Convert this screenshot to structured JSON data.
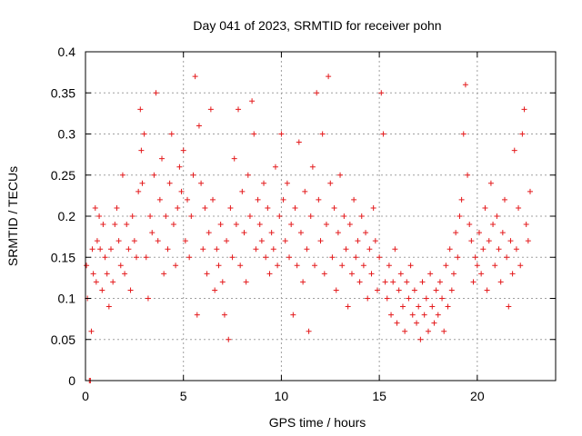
{
  "chart_data": {
    "type": "scatter",
    "title": "Day 041 of 2023, SRMTID for receiver pohn",
    "xlabel": "GPS time / hours",
    "ylabel": "SRMTID / TECUs",
    "xlim": [
      0,
      24
    ],
    "ylim": [
      0,
      0.4
    ],
    "xticks": [
      0,
      5,
      10,
      15,
      20
    ],
    "yticks": [
      0,
      0.05,
      0.1,
      0.15,
      0.2,
      0.25,
      0.3,
      0.35,
      0.4
    ],
    "xtick_labels": [
      "0",
      "5",
      "10",
      "15",
      "20"
    ],
    "ytick_labels": [
      "0",
      "0.05",
      "0.1",
      "0.15",
      "0.2",
      "0.25",
      "0.3",
      "0.35",
      "0.4"
    ],
    "grid": true,
    "marker": "+",
    "color": "#e41a1c",
    "series": [
      {
        "name": "SRMTID",
        "points": [
          [
            0.05,
            0.14
          ],
          [
            0.1,
            0.1
          ],
          [
            0.2,
            0.0
          ],
          [
            0.25,
            0.0
          ],
          [
            0.3,
            0.06
          ],
          [
            0.35,
            0.16
          ],
          [
            0.4,
            0.13
          ],
          [
            0.5,
            0.21
          ],
          [
            0.55,
            0.12
          ],
          [
            0.6,
            0.17
          ],
          [
            0.7,
            0.2
          ],
          [
            0.75,
            0.16
          ],
          [
            0.85,
            0.11
          ],
          [
            0.9,
            0.19
          ],
          [
            1.0,
            0.15
          ],
          [
            1.1,
            0.13
          ],
          [
            1.2,
            0.09
          ],
          [
            1.3,
            0.16
          ],
          [
            1.4,
            0.12
          ],
          [
            1.5,
            0.19
          ],
          [
            1.6,
            0.21
          ],
          [
            1.7,
            0.17
          ],
          [
            1.8,
            0.14
          ],
          [
            1.9,
            0.25
          ],
          [
            2.0,
            0.13
          ],
          [
            2.1,
            0.19
          ],
          [
            2.2,
            0.16
          ],
          [
            2.3,
            0.11
          ],
          [
            2.4,
            0.2
          ],
          [
            2.5,
            0.17
          ],
          [
            2.6,
            0.15
          ],
          [
            2.7,
            0.23
          ],
          [
            2.8,
            0.33
          ],
          [
            2.85,
            0.28
          ],
          [
            2.9,
            0.24
          ],
          [
            3.0,
            0.3
          ],
          [
            3.1,
            0.15
          ],
          [
            3.2,
            0.1
          ],
          [
            3.3,
            0.2
          ],
          [
            3.4,
            0.18
          ],
          [
            3.5,
            0.25
          ],
          [
            3.6,
            0.35
          ],
          [
            3.7,
            0.17
          ],
          [
            3.8,
            0.22
          ],
          [
            3.9,
            0.27
          ],
          [
            4.0,
            0.13
          ],
          [
            4.1,
            0.2
          ],
          [
            4.2,
            0.16
          ],
          [
            4.3,
            0.24
          ],
          [
            4.4,
            0.3
          ],
          [
            4.5,
            0.19
          ],
          [
            4.6,
            0.14
          ],
          [
            4.7,
            0.21
          ],
          [
            4.8,
            0.26
          ],
          [
            4.9,
            0.23
          ],
          [
            5.0,
            0.28
          ],
          [
            5.1,
            0.17
          ],
          [
            5.2,
            0.22
          ],
          [
            5.3,
            0.15
          ],
          [
            5.4,
            0.2
          ],
          [
            5.5,
            0.25
          ],
          [
            5.6,
            0.37
          ],
          [
            5.7,
            0.08
          ],
          [
            5.8,
            0.31
          ],
          [
            5.9,
            0.24
          ],
          [
            6.0,
            0.16
          ],
          [
            6.1,
            0.21
          ],
          [
            6.2,
            0.13
          ],
          [
            6.3,
            0.18
          ],
          [
            6.4,
            0.33
          ],
          [
            6.5,
            0.22
          ],
          [
            6.6,
            0.11
          ],
          [
            6.7,
            0.16
          ],
          [
            6.8,
            0.14
          ],
          [
            6.9,
            0.19
          ],
          [
            7.0,
            0.12
          ],
          [
            7.1,
            0.08
          ],
          [
            7.2,
            0.17
          ],
          [
            7.3,
            0.05
          ],
          [
            7.4,
            0.21
          ],
          [
            7.5,
            0.15
          ],
          [
            7.6,
            0.27
          ],
          [
            7.7,
            0.19
          ],
          [
            7.8,
            0.33
          ],
          [
            7.9,
            0.14
          ],
          [
            8.0,
            0.23
          ],
          [
            8.1,
            0.18
          ],
          [
            8.2,
            0.12
          ],
          [
            8.3,
            0.25
          ],
          [
            8.4,
            0.2
          ],
          [
            8.5,
            0.34
          ],
          [
            8.6,
            0.3
          ],
          [
            8.7,
            0.16
          ],
          [
            8.8,
            0.22
          ],
          [
            8.9,
            0.19
          ],
          [
            9.0,
            0.17
          ],
          [
            9.1,
            0.24
          ],
          [
            9.2,
            0.15
          ],
          [
            9.3,
            0.21
          ],
          [
            9.4,
            0.13
          ],
          [
            9.5,
            0.18
          ],
          [
            9.6,
            0.16
          ],
          [
            9.7,
            0.26
          ],
          [
            9.8,
            0.14
          ],
          [
            9.9,
            0.2
          ],
          [
            10.0,
            0.3
          ],
          [
            10.1,
            0.22
          ],
          [
            10.2,
            0.17
          ],
          [
            10.3,
            0.24
          ],
          [
            10.4,
            0.15
          ],
          [
            10.5,
            0.19
          ],
          [
            10.6,
            0.08
          ],
          [
            10.7,
            0.21
          ],
          [
            10.8,
            0.14
          ],
          [
            10.9,
            0.29
          ],
          [
            11.0,
            0.18
          ],
          [
            11.1,
            0.12
          ],
          [
            11.2,
            0.23
          ],
          [
            11.3,
            0.16
          ],
          [
            11.4,
            0.06
          ],
          [
            11.5,
            0.2
          ],
          [
            11.6,
            0.26
          ],
          [
            11.7,
            0.14
          ],
          [
            11.8,
            0.35
          ],
          [
            11.9,
            0.22
          ],
          [
            12.0,
            0.17
          ],
          [
            12.1,
            0.3
          ],
          [
            12.2,
            0.13
          ],
          [
            12.3,
            0.19
          ],
          [
            12.4,
            0.37
          ],
          [
            12.5,
            0.24
          ],
          [
            12.6,
            0.15
          ],
          [
            12.7,
            0.21
          ],
          [
            12.8,
            0.11
          ],
          [
            12.9,
            0.18
          ],
          [
            13.0,
            0.25
          ],
          [
            13.1,
            0.14
          ],
          [
            13.2,
            0.2
          ],
          [
            13.3,
            0.16
          ],
          [
            13.4,
            0.09
          ],
          [
            13.5,
            0.19
          ],
          [
            13.6,
            0.13
          ],
          [
            13.7,
            0.22
          ],
          [
            13.8,
            0.15
          ],
          [
            13.9,
            0.17
          ],
          [
            14.0,
            0.12
          ],
          [
            14.1,
            0.2
          ],
          [
            14.2,
            0.14
          ],
          [
            14.3,
            0.18
          ],
          [
            14.4,
            0.1
          ],
          [
            14.5,
            0.16
          ],
          [
            14.6,
            0.13
          ],
          [
            14.7,
            0.21
          ],
          [
            14.8,
            0.17
          ],
          [
            14.9,
            0.11
          ],
          [
            15.0,
            0.15
          ],
          [
            15.1,
            0.35
          ],
          [
            15.2,
            0.3
          ],
          [
            15.3,
            0.12
          ],
          [
            15.4,
            0.1
          ],
          [
            15.5,
            0.14
          ],
          [
            15.6,
            0.08
          ],
          [
            15.7,
            0.12
          ],
          [
            15.8,
            0.16
          ],
          [
            15.9,
            0.07
          ],
          [
            16.0,
            0.11
          ],
          [
            16.1,
            0.13
          ],
          [
            16.2,
            0.09
          ],
          [
            16.3,
            0.06
          ],
          [
            16.4,
            0.12
          ],
          [
            16.5,
            0.1
          ],
          [
            16.6,
            0.14
          ],
          [
            16.7,
            0.08
          ],
          [
            16.8,
            0.11
          ],
          [
            16.9,
            0.07
          ],
          [
            17.0,
            0.09
          ],
          [
            17.1,
            0.05
          ],
          [
            17.2,
            0.12
          ],
          [
            17.3,
            0.08
          ],
          [
            17.4,
            0.1
          ],
          [
            17.5,
            0.06
          ],
          [
            17.6,
            0.13
          ],
          [
            17.7,
            0.09
          ],
          [
            17.8,
            0.07
          ],
          [
            17.9,
            0.11
          ],
          [
            18.0,
            0.08
          ],
          [
            18.1,
            0.12
          ],
          [
            18.2,
            0.1
          ],
          [
            18.3,
            0.06
          ],
          [
            18.4,
            0.14
          ],
          [
            18.5,
            0.09
          ],
          [
            18.6,
            0.16
          ],
          [
            18.7,
            0.11
          ],
          [
            18.8,
            0.13
          ],
          [
            18.9,
            0.18
          ],
          [
            19.0,
            0.15
          ],
          [
            19.1,
            0.2
          ],
          [
            19.2,
            0.22
          ],
          [
            19.3,
            0.3
          ],
          [
            19.4,
            0.36
          ],
          [
            19.5,
            0.25
          ],
          [
            19.6,
            0.19
          ],
          [
            19.7,
            0.17
          ],
          [
            19.8,
            0.12
          ],
          [
            19.9,
            0.15
          ],
          [
            20.0,
            0.14
          ],
          [
            20.1,
            0.18
          ],
          [
            20.2,
            0.13
          ],
          [
            20.3,
            0.16
          ],
          [
            20.4,
            0.21
          ],
          [
            20.5,
            0.11
          ],
          [
            20.6,
            0.17
          ],
          [
            20.7,
            0.24
          ],
          [
            20.8,
            0.19
          ],
          [
            20.9,
            0.14
          ],
          [
            21.0,
            0.2
          ],
          [
            21.1,
            0.16
          ],
          [
            21.2,
            0.12
          ],
          [
            21.3,
            0.18
          ],
          [
            21.4,
            0.22
          ],
          [
            21.5,
            0.15
          ],
          [
            21.6,
            0.09
          ],
          [
            21.7,
            0.17
          ],
          [
            21.8,
            0.13
          ],
          [
            21.9,
            0.28
          ],
          [
            22.0,
            0.16
          ],
          [
            22.1,
            0.21
          ],
          [
            22.2,
            0.14
          ],
          [
            22.3,
            0.3
          ],
          [
            22.4,
            0.33
          ],
          [
            22.5,
            0.19
          ],
          [
            22.6,
            0.17
          ],
          [
            22.7,
            0.23
          ]
        ]
      }
    ]
  }
}
